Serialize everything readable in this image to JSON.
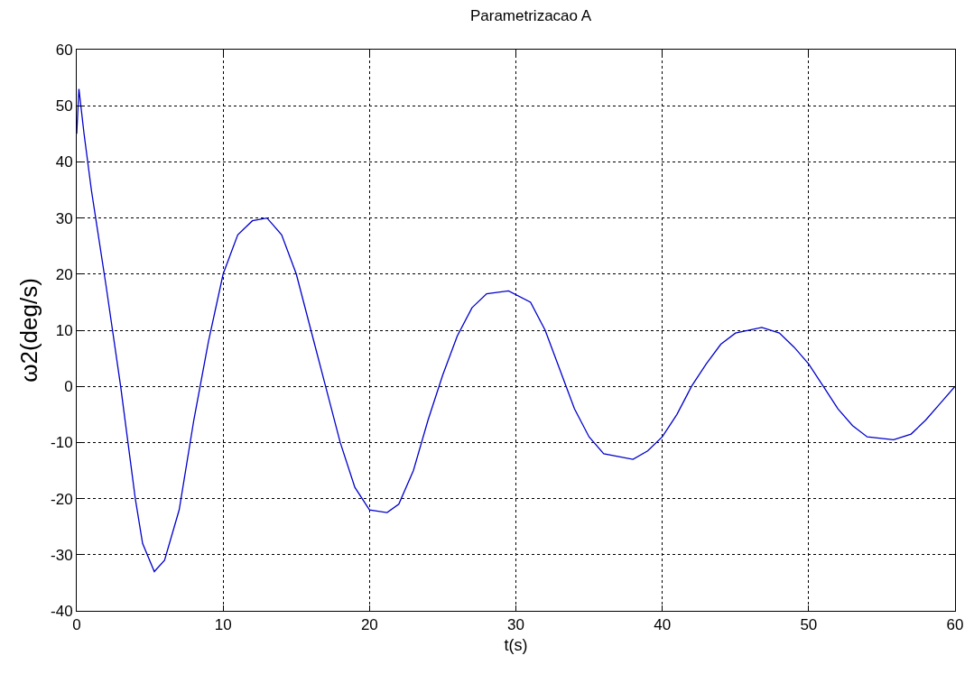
{
  "chart_data": {
    "type": "line",
    "title": "Parametrizacao A",
    "xlabel": "t(s)",
    "ylabel": "ω2(deg/s)",
    "series": [
      {
        "color": "#0000cc",
        "x": [
          0,
          0.15,
          0.5,
          1,
          2,
          3,
          4,
          4.5,
          5.3,
          6,
          7,
          8,
          9,
          10,
          11,
          12,
          13,
          14,
          15,
          16,
          17,
          18,
          19,
          20,
          21.2,
          22,
          23,
          24,
          25,
          26,
          27,
          28,
          29.5,
          31,
          32,
          33,
          34,
          35,
          36,
          38,
          39,
          40,
          41,
          42,
          43,
          44,
          45,
          46.8,
          48,
          49,
          50,
          51,
          52,
          53,
          54,
          55.8,
          57,
          58,
          59,
          60
        ],
        "values": [
          45,
          53,
          45,
          35,
          18,
          0,
          -20,
          -28,
          -33,
          -31,
          -22,
          -6,
          8,
          20,
          27,
          29.5,
          30,
          27,
          20,
          10,
          0,
          -10,
          -18,
          -22,
          -22.5,
          -21,
          -15,
          -6,
          2,
          9,
          14,
          16.5,
          17,
          15,
          10,
          3,
          -4,
          -9,
          -12,
          -13,
          -11.5,
          -9,
          -5,
          0,
          4,
          7.5,
          9.5,
          10.5,
          9.5,
          7,
          4,
          0,
          -4,
          -7,
          -9,
          -9.5,
          -8.5,
          -6,
          -3,
          0
        ]
      }
    ],
    "xlim": [
      0,
      60
    ],
    "xticks": [
      0,
      10,
      20,
      30,
      40,
      50,
      60
    ],
    "ylim": [
      -40,
      60
    ],
    "yticks": [
      -40,
      -30,
      -20,
      -10,
      0,
      10,
      20,
      30,
      40,
      50,
      60
    ],
    "grid": true,
    "marker": "none",
    "line_style": "solid"
  }
}
